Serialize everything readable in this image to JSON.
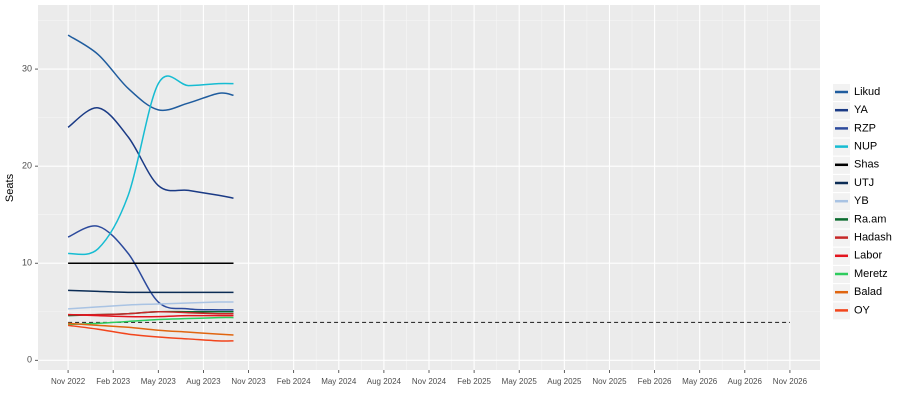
{
  "chart_data": {
    "type": "line",
    "y_label": "Seats",
    "x": [
      "2022-11",
      "2023-01",
      "2023-03",
      "2023-05",
      "2023-07",
      "2023-09",
      "2023-10"
    ],
    "series": [
      {
        "name": "Likud",
        "color": "#1f5c9e",
        "values": [
          33.5,
          31.5,
          28,
          25.8,
          26.5,
          27.5,
          27.3
        ]
      },
      {
        "name": "YA",
        "color": "#1a3a85",
        "values": [
          24,
          26,
          23,
          18,
          17.5,
          17,
          16.7
        ]
      },
      {
        "name": "RZP",
        "color": "#2c4a9c",
        "values": [
          12.7,
          13.8,
          11,
          6,
          5.3,
          5.2,
          5.2
        ]
      },
      {
        "name": "NUP",
        "color": "#16bcd2",
        "values": [
          11,
          11.5,
          17,
          28.5,
          28.3,
          28.5,
          28.5
        ]
      },
      {
        "name": "Shas",
        "color": "#000000",
        "values": [
          10,
          10,
          10,
          10,
          10,
          10,
          10
        ]
      },
      {
        "name": "UTJ",
        "color": "#0b2c55",
        "values": [
          7.2,
          7.1,
          7,
          7,
          7,
          7,
          7
        ]
      },
      {
        "name": "YB",
        "color": "#a9c3e3",
        "values": [
          5.3,
          5.5,
          5.7,
          5.8,
          5.9,
          6,
          6
        ]
      },
      {
        "name": "Ra.am",
        "color": "#0a6b2e",
        "values": [
          4.6,
          4.7,
          4.8,
          5,
          5,
          5,
          5
        ]
      },
      {
        "name": "Hadash",
        "color": "#c62828",
        "values": [
          4.7,
          4.7,
          4.8,
          5,
          4.9,
          4.8,
          4.8
        ]
      },
      {
        "name": "Labor",
        "color": "#e3141e",
        "values": [
          4.7,
          4.6,
          4.5,
          4.5,
          4.6,
          4.6,
          4.6
        ]
      },
      {
        "name": "Meretz",
        "color": "#2ecc5e",
        "values": [
          3.7,
          3.8,
          4.0,
          4.2,
          4.3,
          4.4,
          4.4
        ]
      },
      {
        "name": "Balad",
        "color": "#e0650f",
        "values": [
          3.8,
          3.6,
          3.4,
          3.1,
          2.9,
          2.7,
          2.6
        ]
      },
      {
        "name": "OY",
        "color": "#f2451c",
        "values": [
          3.6,
          3.2,
          2.7,
          2.4,
          2.2,
          2.0,
          2.0
        ]
      }
    ],
    "threshold": 3.9,
    "xlim": [
      "2022-09",
      "2027-01"
    ],
    "xticks": [
      {
        "value": "2022-11",
        "label": "Nov 2022"
      },
      {
        "value": "2023-02",
        "label": "Feb 2023"
      },
      {
        "value": "2023-05",
        "label": "May 2023"
      },
      {
        "value": "2023-08",
        "label": "Aug 2023"
      },
      {
        "value": "2023-11",
        "label": "Nov 2023"
      },
      {
        "value": "2024-02",
        "label": "Feb 2024"
      },
      {
        "value": "2024-05",
        "label": "May 2024"
      },
      {
        "value": "2024-08",
        "label": "Aug 2024"
      },
      {
        "value": "2024-11",
        "label": "Nov 2024"
      },
      {
        "value": "2025-02",
        "label": "Feb 2025"
      },
      {
        "value": "2025-05",
        "label": "May 2025"
      },
      {
        "value": "2025-08",
        "label": "Aug 2025"
      },
      {
        "value": "2025-11",
        "label": "Nov 2025"
      },
      {
        "value": "2026-02",
        "label": "Feb 2026"
      },
      {
        "value": "2026-05",
        "label": "May 2026"
      },
      {
        "value": "2026-08",
        "label": "Aug 2026"
      },
      {
        "value": "2026-11",
        "label": "Nov 2026"
      }
    ],
    "ylim": [
      -1,
      36.6
    ],
    "yticks": [
      0,
      10,
      20,
      30
    ],
    "grid": true,
    "legend": "right"
  }
}
